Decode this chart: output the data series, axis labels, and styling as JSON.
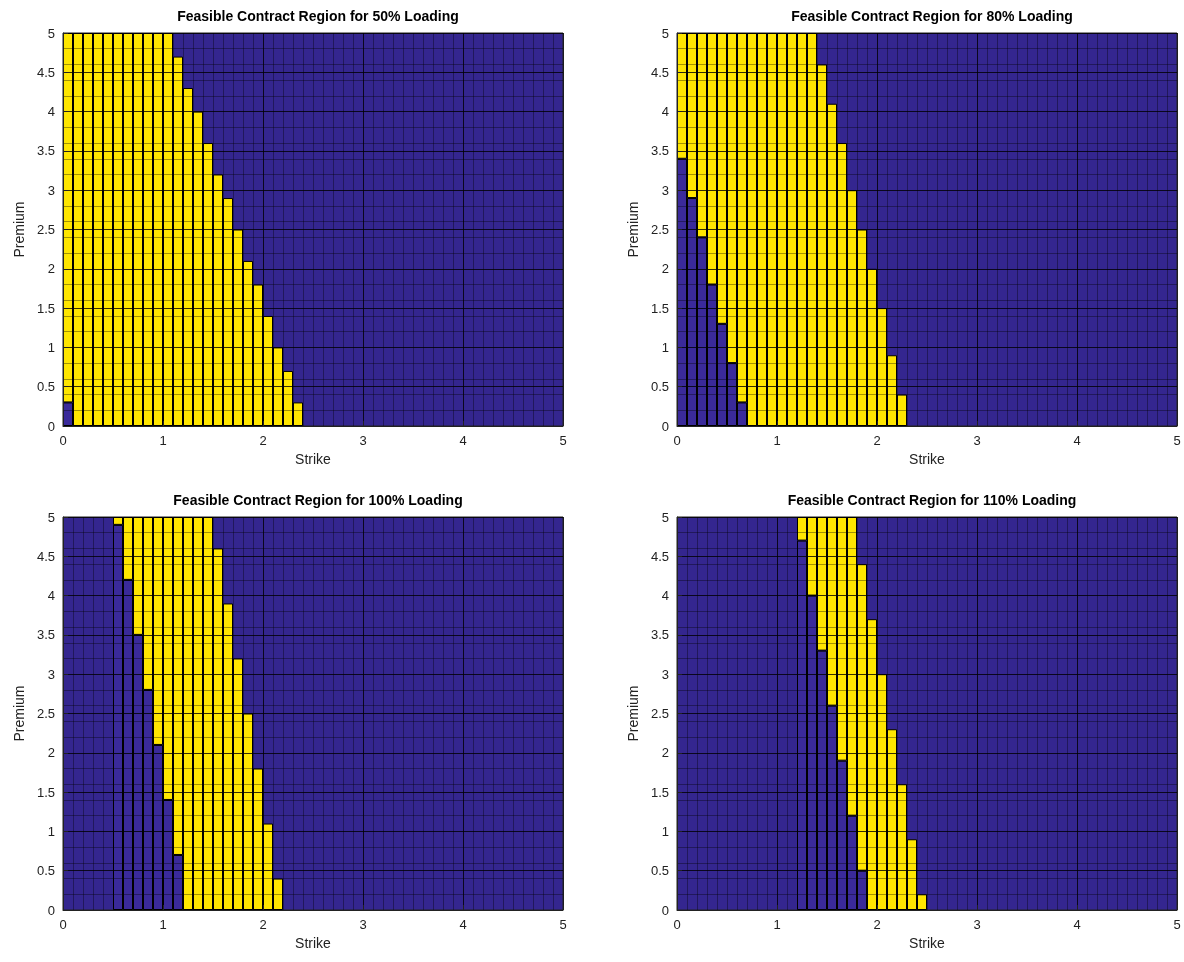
{
  "chart_data": [
    {
      "type": "bar",
      "title": "Feasible Contract Region for 50% Loading",
      "xlabel": "Strike",
      "ylabel": "Premium",
      "xlim": [
        0,
        5
      ],
      "ylim": [
        0,
        5
      ],
      "xticks": [
        0,
        1,
        2,
        3,
        4,
        5
      ],
      "yticks": [
        0,
        0.5,
        1,
        1.5,
        2,
        2.5,
        3,
        3.5,
        4,
        4.5,
        5
      ],
      "grid": true,
      "stacked": true,
      "x": [
        0.05,
        0.15,
        0.25,
        0.35,
        0.45,
        0.55,
        0.65,
        0.75,
        0.85,
        0.95,
        1.05,
        1.15,
        1.25,
        1.35,
        1.45,
        1.55,
        1.65,
        1.75,
        1.85,
        1.95,
        2.05,
        2.15,
        2.25,
        2.35
      ],
      "series": [
        {
          "color": "#3a2a9a",
          "values": [
            0.3,
            0,
            0,
            0,
            0,
            0,
            0,
            0,
            0,
            0,
            0,
            0,
            0,
            0,
            0,
            0,
            0,
            0,
            0,
            0,
            0,
            0,
            0,
            0
          ]
        },
        {
          "color": "#ffe600",
          "values": [
            4.7,
            5,
            5,
            5,
            5,
            5,
            5,
            5,
            5,
            5,
            5,
            4.7,
            4.3,
            4.0,
            3.6,
            3.2,
            2.9,
            2.5,
            2.1,
            1.8,
            1.4,
            1.0,
            0.7,
            0.3
          ]
        }
      ]
    },
    {
      "type": "bar",
      "title": "Feasible Contract Region for 80% Loading",
      "xlabel": "Strike",
      "ylabel": "Premium",
      "xlim": [
        0,
        5
      ],
      "ylim": [
        0,
        5
      ],
      "xticks": [
        0,
        1,
        2,
        3,
        4,
        5
      ],
      "yticks": [
        0,
        0.5,
        1,
        1.5,
        2,
        2.5,
        3,
        3.5,
        4,
        4.5,
        5
      ],
      "grid": true,
      "stacked": true,
      "x": [
        0.05,
        0.15,
        0.25,
        0.35,
        0.45,
        0.55,
        0.65,
        0.75,
        0.85,
        0.95,
        1.05,
        1.15,
        1.25,
        1.35,
        1.45,
        1.55,
        1.65,
        1.75,
        1.85,
        1.95,
        2.05,
        2.15,
        2.25
      ],
      "series": [
        {
          "color": "#3a2a9a",
          "values": [
            3.4,
            2.9,
            2.4,
            1.8,
            1.3,
            0.8,
            0.3,
            0,
            0,
            0,
            0,
            0,
            0,
            0,
            0,
            0,
            0,
            0,
            0,
            0,
            0,
            0,
            0
          ]
        },
        {
          "color": "#ffe600",
          "values": [
            1.6,
            2.1,
            2.6,
            3.2,
            3.7,
            4.2,
            4.7,
            5,
            5,
            5,
            5,
            5,
            5,
            5,
            4.6,
            4.1,
            3.6,
            3.0,
            2.5,
            2.0,
            1.5,
            0.9,
            0.4
          ]
        }
      ]
    },
    {
      "type": "bar",
      "title": "Feasible Contract Region for 100% Loading",
      "xlabel": "Strike",
      "ylabel": "Premium",
      "xlim": [
        0,
        5
      ],
      "ylim": [
        0,
        5
      ],
      "xticks": [
        0,
        1,
        2,
        3,
        4,
        5
      ],
      "yticks": [
        0,
        0.5,
        1,
        1.5,
        2,
        2.5,
        3,
        3.5,
        4,
        4.5,
        5
      ],
      "grid": true,
      "stacked": true,
      "x": [
        0.55,
        0.65,
        0.75,
        0.85,
        0.95,
        1.05,
        1.15,
        1.25,
        1.35,
        1.45,
        1.55,
        1.65,
        1.75,
        1.85,
        1.95,
        2.05,
        2.15
      ],
      "series": [
        {
          "color": "#3a2a9a",
          "values": [
            4.9,
            4.2,
            3.5,
            2.8,
            2.1,
            1.4,
            0.7,
            0,
            0,
            0,
            0,
            0,
            0,
            0,
            0,
            0,
            0
          ]
        },
        {
          "color": "#ffe600",
          "values": [
            0.1,
            0.8,
            1.5,
            2.2,
            2.9,
            3.6,
            4.3,
            5,
            5,
            5,
            4.6,
            3.9,
            3.2,
            2.5,
            1.8,
            1.1,
            0.4
          ]
        }
      ]
    },
    {
      "type": "bar",
      "title": "Feasible Contract Region for 110% Loading",
      "xlabel": "Strike",
      "ylabel": "Premium",
      "xlim": [
        0,
        5
      ],
      "ylim": [
        0,
        5
      ],
      "xticks": [
        0,
        1,
        2,
        3,
        4,
        5
      ],
      "yticks": [
        0,
        0.5,
        1,
        1.5,
        2,
        2.5,
        3,
        3.5,
        4,
        4.5,
        5
      ],
      "grid": true,
      "stacked": true,
      "x": [
        1.25,
        1.35,
        1.45,
        1.55,
        1.65,
        1.75,
        1.85,
        1.95,
        2.05,
        2.15,
        2.25,
        2.35,
        2.45
      ],
      "series": [
        {
          "color": "#3a2a9a",
          "values": [
            4.7,
            4.0,
            3.3,
            2.6,
            1.9,
            1.2,
            0.5,
            0,
            0,
            0,
            0,
            0,
            0
          ]
        },
        {
          "color": "#ffe600",
          "values": [
            0.3,
            1.0,
            1.7,
            2.4,
            3.1,
            3.8,
            3.9,
            3.7,
            3.0,
            2.3,
            1.6,
            0.9,
            0.2
          ]
        }
      ]
    }
  ]
}
